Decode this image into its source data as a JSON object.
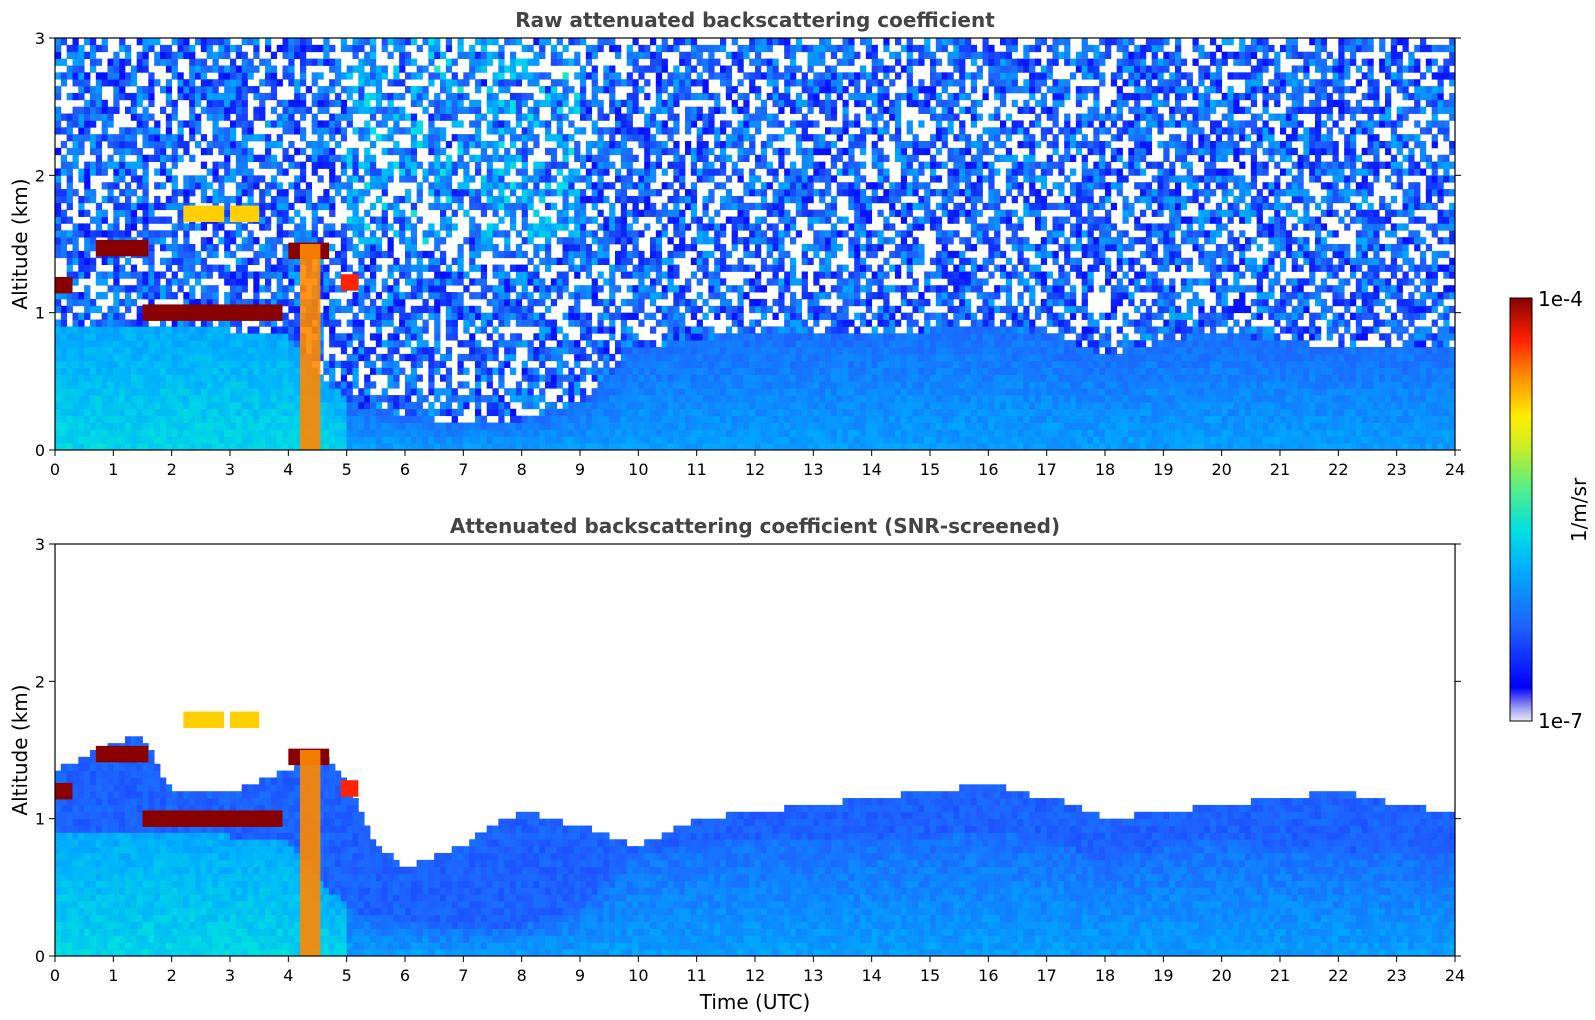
{
  "chart_data": [
    {
      "type": "heatmap",
      "title": "Raw attenuated backscattering coefficient",
      "xlabel": "",
      "ylabel": "Altitude (km)",
      "xlim": [
        0,
        24
      ],
      "ylim": [
        0,
        3
      ],
      "x_ticks": [
        "0",
        "1",
        "2",
        "3",
        "4",
        "5",
        "6",
        "7",
        "8",
        "9",
        "10",
        "11",
        "12",
        "13",
        "14",
        "15",
        "16",
        "17",
        "18",
        "19",
        "20",
        "21",
        "22",
        "23",
        "24"
      ],
      "y_ticks": [
        "0",
        "1",
        "2",
        "3"
      ],
      "screened": false,
      "cloud_layers": [
        {
          "t_start": 0.0,
          "t_end": 0.3,
          "alt_km": 1.2,
          "level": 1.0
        },
        {
          "t_start": 0.7,
          "t_end": 1.6,
          "alt_km": 1.47,
          "level": 1.0
        },
        {
          "t_start": 1.5,
          "t_end": 3.9,
          "alt_km": 1.0,
          "level": 1.0
        },
        {
          "t_start": 2.2,
          "t_end": 2.9,
          "alt_km": 1.72,
          "level": 0.75
        },
        {
          "t_start": 3.0,
          "t_end": 3.5,
          "alt_km": 1.72,
          "level": 0.75
        },
        {
          "t_start": 4.0,
          "t_end": 4.7,
          "alt_km": 1.45,
          "level": 1.0
        },
        {
          "t_start": 4.9,
          "t_end": 5.2,
          "alt_km": 1.22,
          "level": 0.9
        }
      ],
      "boundary_layer_top_km": [
        [
          0,
          0.9
        ],
        [
          2,
          0.9
        ],
        [
          4,
          0.85
        ],
        [
          5,
          0.35
        ],
        [
          6,
          0.25
        ],
        [
          7,
          0.2
        ],
        [
          8,
          0.22
        ],
        [
          9,
          0.35
        ],
        [
          10,
          0.75
        ],
        [
          12,
          0.85
        ],
        [
          14,
          0.85
        ],
        [
          16,
          0.9
        ],
        [
          17,
          0.85
        ],
        [
          18,
          0.7
        ],
        [
          19,
          0.8
        ],
        [
          20,
          0.85
        ],
        [
          21,
          0.8
        ],
        [
          22,
          0.75
        ],
        [
          24,
          0.75
        ]
      ]
    },
    {
      "type": "heatmap",
      "title": "Attenuated backscattering coefficient (SNR-screened)",
      "xlabel": "Time (UTC)",
      "ylabel": "Altitude (km)",
      "xlim": [
        0,
        24
      ],
      "ylim": [
        0,
        3
      ],
      "x_ticks": [
        "0",
        "1",
        "2",
        "3",
        "4",
        "5",
        "6",
        "7",
        "8",
        "9",
        "10",
        "11",
        "12",
        "13",
        "14",
        "15",
        "16",
        "17",
        "18",
        "19",
        "20",
        "21",
        "22",
        "23",
        "24"
      ],
      "y_ticks": [
        "0",
        "1",
        "2",
        "3"
      ],
      "screened": true,
      "screen_top_km": [
        [
          0,
          1.35
        ],
        [
          1,
          1.55
        ],
        [
          1.5,
          1.6
        ],
        [
          2,
          1.2
        ],
        [
          3,
          1.2
        ],
        [
          4,
          1.35
        ],
        [
          4.5,
          1.5
        ],
        [
          5,
          1.3
        ],
        [
          5.5,
          0.8
        ],
        [
          6,
          0.65
        ],
        [
          7,
          0.8
        ],
        [
          7.5,
          0.95
        ],
        [
          8,
          1.05
        ],
        [
          9,
          0.95
        ],
        [
          10,
          0.8
        ],
        [
          10.5,
          0.9
        ],
        [
          11,
          1.0
        ],
        [
          12,
          1.05
        ],
        [
          13,
          1.1
        ],
        [
          14,
          1.15
        ],
        [
          15,
          1.2
        ],
        [
          16,
          1.25
        ],
        [
          17,
          1.15
        ],
        [
          17.5,
          1.1
        ],
        [
          18,
          1.0
        ],
        [
          19,
          1.05
        ],
        [
          20,
          1.1
        ],
        [
          21,
          1.15
        ],
        [
          22,
          1.2
        ],
        [
          23,
          1.1
        ],
        [
          24,
          1.05
        ]
      ]
    }
  ],
  "colorbar": {
    "label": "1/m/sr",
    "max_label": "1e-4",
    "min_label": "1e-7",
    "colormap": "jet",
    "scale": "log",
    "range": [
      1e-07,
      0.0001
    ]
  },
  "colors": {
    "axes": "#000000",
    "title": "#444444"
  }
}
